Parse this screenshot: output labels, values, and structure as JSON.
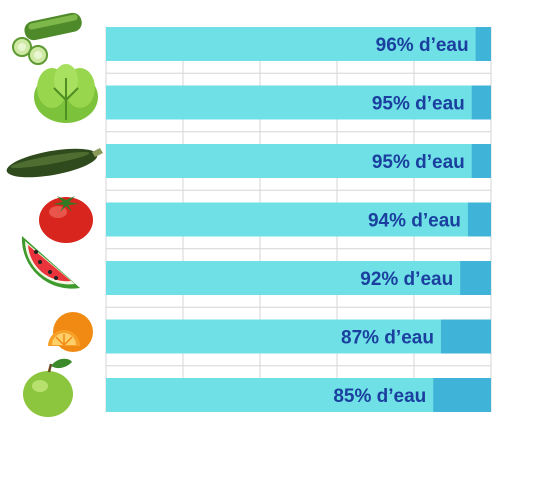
{
  "chart_data": {
    "type": "bar",
    "orientation": "horizontal",
    "categories": [
      "cucumber-icon",
      "lettuce-icon",
      "zucchini-icon",
      "tomato-icon",
      "watermelon-icon",
      "orange-icon",
      "apple-icon"
    ],
    "values": [
      96,
      95,
      95,
      94,
      92,
      87,
      85
    ],
    "labels": [
      "96% d’eau",
      "95% d’eau",
      "95% d’eau",
      "94% d’eau",
      "92% d’eau",
      "87% d’eau",
      "85% d’eau"
    ],
    "xlim": [
      0,
      100
    ],
    "grid": true,
    "title": "",
    "xlabel": "",
    "ylabel": ""
  },
  "colors": {
    "bar_fill": "#6ee0e6",
    "bar_remainder": "#3fb4d8",
    "label_text": "#1a3f9e",
    "grid": "#d6d6d6"
  }
}
